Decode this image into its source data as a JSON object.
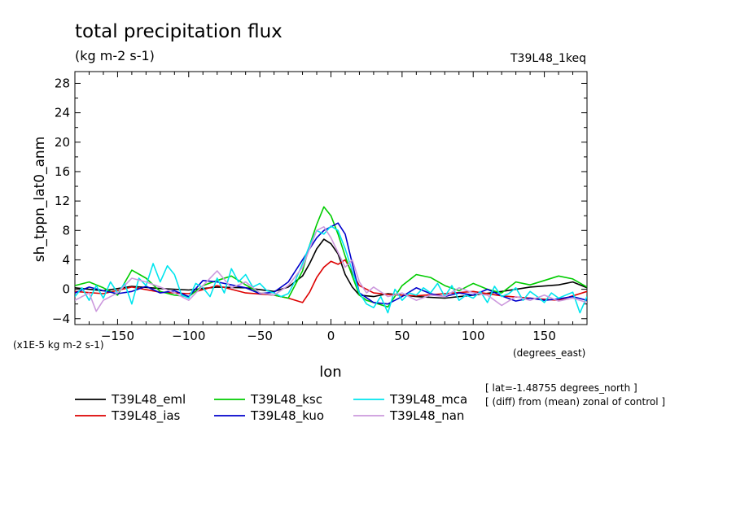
{
  "chart_data": {
    "type": "line",
    "title": "total precipitation flux",
    "units": "(kg m-2 s-1)",
    "run_label": "T39L48_1keq",
    "ylabel": "sh_tppn_lat0_anm",
    "xlabel": "lon",
    "x_units": "(degrees_east)",
    "y_scale_note": "(x1E-5 kg m-2 s-1)",
    "xlim": [
      -180,
      180
    ],
    "ylim": [
      -4.8,
      29.6
    ],
    "x_ticks": [
      -150,
      -100,
      -50,
      0,
      50,
      100,
      150
    ],
    "y_ticks": [
      -4,
      0,
      4,
      8,
      12,
      16,
      20,
      24,
      28
    ],
    "grid": false,
    "legend_position": "bottom",
    "notes": [
      "[ lat=-1.48755 degrees_north ]",
      "[ (diff) from (mean) zonal of control ]"
    ],
    "series": [
      {
        "name": "T39L48_eml",
        "color": "#000000",
        "x": [
          -180,
          -160,
          -140,
          -120,
          -100,
          -80,
          -60,
          -40,
          -30,
          -20,
          -15,
          -10,
          -5,
          0,
          5,
          10,
          15,
          20,
          30,
          40,
          60,
          80,
          100,
          120,
          140,
          160,
          170,
          180
        ],
        "y": [
          0.2,
          -0.2,
          0.4,
          0.1,
          -0.1,
          0.3,
          0.2,
          -0.3,
          0.3,
          1.8,
          3.5,
          5.5,
          6.8,
          6.2,
          4.8,
          2.0,
          0.3,
          -0.8,
          -1.0,
          -0.6,
          -1.0,
          -1.2,
          -0.8,
          -0.3,
          0.3,
          0.6,
          1.0,
          0.2
        ]
      },
      {
        "name": "T39L48_ias",
        "color": "#dd0000",
        "x": [
          -180,
          -160,
          -140,
          -120,
          -100,
          -80,
          -60,
          -40,
          -30,
          -20,
          -15,
          -10,
          -5,
          0,
          5,
          10,
          15,
          20,
          30,
          40,
          60,
          80,
          100,
          120,
          140,
          160,
          180
        ],
        "y": [
          -0.3,
          -0.6,
          0.3,
          -0.4,
          -0.6,
          0.5,
          -0.5,
          -0.8,
          -1.2,
          -1.8,
          -0.4,
          1.6,
          3.0,
          3.8,
          3.4,
          4.0,
          2.2,
          0.5,
          -0.5,
          -0.7,
          -0.9,
          -0.6,
          -0.3,
          -0.9,
          -1.2,
          -1.5,
          -0.3
        ]
      },
      {
        "name": "T39L48_ksc",
        "color": "#00cc00",
        "x": [
          -180,
          -170,
          -160,
          -150,
          -140,
          -130,
          -120,
          -110,
          -100,
          -90,
          -80,
          -70,
          -60,
          -50,
          -40,
          -30,
          -20,
          -15,
          -10,
          -5,
          0,
          5,
          10,
          15,
          20,
          25,
          30,
          40,
          50,
          60,
          70,
          80,
          90,
          100,
          110,
          120,
          130,
          140,
          150,
          160,
          170,
          180
        ],
        "y": [
          0.5,
          1.0,
          0.2,
          -0.8,
          2.6,
          1.5,
          -0.3,
          -0.8,
          -1.0,
          0.5,
          1.2,
          1.8,
          0.6,
          -0.5,
          -0.8,
          -1.2,
          2.5,
          6.0,
          8.8,
          11.2,
          10.0,
          7.5,
          4.5,
          1.8,
          -0.8,
          -1.5,
          -1.8,
          -2.4,
          0.5,
          2.0,
          1.6,
          0.5,
          -0.2,
          0.8,
          0.0,
          -0.5,
          1.0,
          0.6,
          1.2,
          1.8,
          1.4,
          0.3
        ]
      },
      {
        "name": "T39L48_kuo",
        "color": "#0000cc",
        "x": [
          -180,
          -170,
          -160,
          -150,
          -140,
          -130,
          -120,
          -110,
          -100,
          -90,
          -80,
          -70,
          -60,
          -50,
          -40,
          -30,
          -20,
          -15,
          -10,
          -5,
          0,
          5,
          10,
          15,
          20,
          30,
          40,
          50,
          60,
          70,
          80,
          90,
          100,
          110,
          120,
          130,
          140,
          150,
          160,
          170,
          180
        ],
        "y": [
          -0.5,
          0.3,
          -0.2,
          -0.6,
          -0.3,
          0.4,
          -0.5,
          -0.2,
          -1.0,
          1.2,
          1.0,
          0.6,
          0.2,
          -0.6,
          -0.4,
          1.0,
          4.0,
          5.5,
          7.0,
          8.0,
          8.5,
          9.0,
          7.5,
          3.5,
          -0.5,
          -1.8,
          -2.0,
          -1.0,
          0.2,
          -0.6,
          -1.0,
          -0.5,
          -0.8,
          0.0,
          -0.9,
          -1.6,
          -1.2,
          -1.5,
          -1.3,
          -1.0,
          -1.5
        ]
      },
      {
        "name": "T39L48_mca",
        "color": "#00e5ee",
        "x": [
          -180,
          -175,
          -170,
          -165,
          -160,
          -155,
          -150,
          -145,
          -140,
          -135,
          -130,
          -125,
          -120,
          -115,
          -110,
          -105,
          -100,
          -95,
          -90,
          -85,
          -80,
          -75,
          -70,
          -65,
          -60,
          -55,
          -50,
          -45,
          -40,
          -35,
          -30,
          -25,
          -20,
          -15,
          -10,
          -5,
          0,
          5,
          10,
          15,
          20,
          25,
          30,
          35,
          40,
          45,
          50,
          55,
          60,
          65,
          70,
          75,
          80,
          85,
          90,
          95,
          100,
          105,
          110,
          115,
          120,
          125,
          130,
          135,
          140,
          145,
          150,
          155,
          160,
          165,
          170,
          175,
          180
        ],
        "y": [
          -1.0,
          0.2,
          -1.5,
          0.5,
          -1.2,
          1.0,
          -0.5,
          0.8,
          -2.0,
          1.5,
          0.5,
          3.5,
          1.0,
          3.2,
          2.0,
          -0.8,
          -1.2,
          0.8,
          0.2,
          -1.0,
          1.5,
          -0.5,
          2.8,
          1.0,
          2.0,
          0.3,
          0.8,
          -0.2,
          -0.5,
          -1.0,
          -0.6,
          1.2,
          3.5,
          6.0,
          8.0,
          7.5,
          8.6,
          8.0,
          5.5,
          2.5,
          -0.5,
          -2.0,
          -2.5,
          -1.0,
          -3.2,
          0.0,
          -1.5,
          -0.5,
          -0.8,
          0.2,
          -0.5,
          0.8,
          -1.0,
          0.5,
          -1.5,
          -0.8,
          -1.2,
          -0.3,
          -1.8,
          0.4,
          -1.0,
          -0.6,
          0.2,
          -1.5,
          -0.3,
          -1.0,
          -1.8,
          -0.5,
          -1.2,
          -0.8,
          -0.4,
          -3.2,
          -1.0
        ]
      },
      {
        "name": "T39L48_nan",
        "color": "#cc99dd",
        "x": [
          -180,
          -170,
          -165,
          -160,
          -150,
          -140,
          -130,
          -120,
          -110,
          -100,
          -90,
          -80,
          -70,
          -60,
          -50,
          -40,
          -30,
          -20,
          -15,
          -10,
          -5,
          0,
          5,
          10,
          15,
          20,
          25,
          30,
          40,
          50,
          60,
          70,
          80,
          90,
          100,
          110,
          120,
          130,
          140,
          150,
          160,
          170,
          180
        ],
        "y": [
          -1.5,
          -0.5,
          -3.0,
          -1.5,
          -0.5,
          1.5,
          1.0,
          0.3,
          -0.5,
          -1.5,
          0.5,
          2.5,
          0.2,
          1.0,
          -0.5,
          -0.8,
          0.5,
          3.0,
          5.5,
          8.0,
          8.5,
          7.0,
          5.0,
          3.0,
          4.0,
          1.0,
          -0.5,
          0.3,
          -1.0,
          -0.5,
          -1.5,
          -0.8,
          -1.0,
          0.2,
          -0.5,
          -0.8,
          -2.2,
          -1.0,
          -1.5,
          -0.8,
          -1.6,
          -1.2,
          -1.8
        ]
      }
    ]
  }
}
